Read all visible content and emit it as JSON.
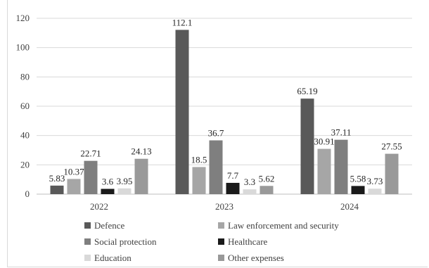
{
  "chart_data": {
    "type": "bar",
    "categories": [
      "2022",
      "2023",
      "2024"
    ],
    "series": [
      {
        "name": "Defence",
        "values": [
          5.83,
          112.1,
          65.19
        ],
        "color": "#595959",
        "labels": [
          "5.83",
          "112.1",
          "65.19"
        ]
      },
      {
        "name": "Law enforcement and security",
        "values": [
          10.37,
          18.5,
          30.91
        ],
        "color": "#a6a6a6",
        "labels": [
          "10.37",
          "18.5",
          "30.91"
        ]
      },
      {
        "name": "Social protection",
        "values": [
          22.71,
          36.7,
          37.11
        ],
        "color": "#7f7f7f",
        "labels": [
          "22.71",
          "36.7",
          "37.11"
        ]
      },
      {
        "name": "Healthcare",
        "values": [
          3.6,
          7.7,
          5.58
        ],
        "color": "#1a1a1a",
        "labels": [
          "3.6",
          "7.7",
          "5.58"
        ]
      },
      {
        "name": "Education",
        "values": [
          3.95,
          3.3,
          3.73
        ],
        "color": "#d9d9d9",
        "labels": [
          "3.95",
          "3.3",
          "3.73"
        ]
      },
      {
        "name": "Other expenses",
        "values": [
          24.13,
          5.62,
          27.55
        ],
        "color": "#999999",
        "labels": [
          "24.13",
          "5.62",
          "27.55"
        ]
      }
    ],
    "yticks": [
      "0",
      "20",
      "40",
      "60",
      "80",
      "100",
      "120"
    ],
    "ylim": [
      0,
      120
    ],
    "grid": true,
    "legend_position": "bottom",
    "title": "",
    "xlabel": "",
    "ylabel": ""
  }
}
